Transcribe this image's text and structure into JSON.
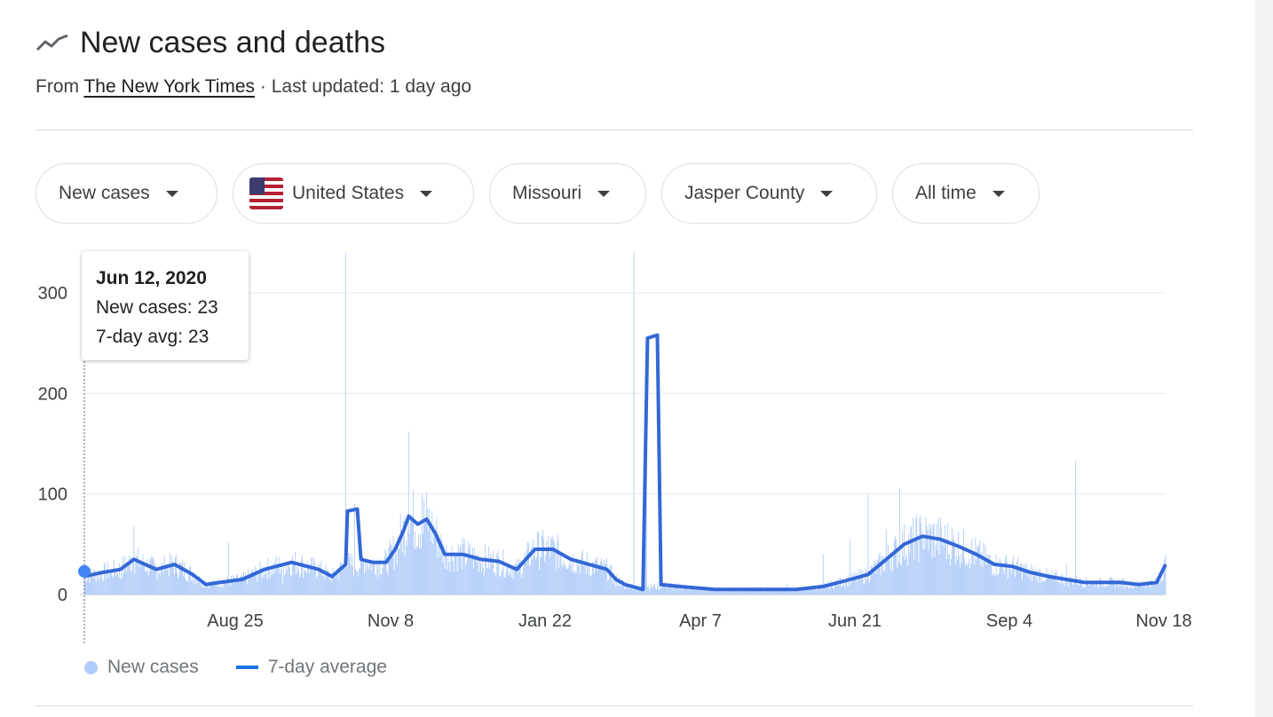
{
  "header": {
    "title": "New cases and deaths",
    "icon": "trend-line-icon"
  },
  "source": {
    "from_label": "From",
    "link": "The New York Times",
    "updated": "· Last updated: 1 day ago"
  },
  "filters": {
    "metric": "New cases",
    "country": "United States",
    "state": "Missouri",
    "county": "Jasper County",
    "range": "All time"
  },
  "tooltip": {
    "date": "Jun 12, 2020",
    "cases_line": "New cases: 23",
    "avg_line": "7-day avg: 23"
  },
  "legend": {
    "cases": "New cases",
    "avg": "7-day average"
  },
  "colors": {
    "bars": "#aecbfa",
    "line": "#3367d6",
    "grid": "#e8eaed",
    "axis_text": "#3c4043"
  },
  "chart_data": {
    "type": "bar",
    "ylim": [
      0,
      340
    ],
    "yticks": [
      0,
      100,
      200,
      300
    ],
    "xlabels": [
      "Aug 25",
      "Nov 8",
      "Jan 22",
      "Apr 7",
      "Jun 21",
      "Sep 4",
      "Nov 18"
    ],
    "series": [
      {
        "name": "New cases",
        "type": "bar",
        "approx_daily_points": [
          [
            0,
            23
          ],
          [
            30,
            25
          ],
          [
            40,
            15
          ],
          [
            55,
            68
          ],
          [
            90,
            28
          ],
          [
            130,
            12
          ],
          [
            160,
            52
          ],
          [
            200,
            20
          ],
          [
            220,
            10
          ],
          [
            260,
            30
          ],
          [
            290,
            340
          ],
          [
            300,
            90
          ],
          [
            320,
            30
          ],
          [
            345,
            40
          ],
          [
            360,
            162
          ],
          [
            375,
            100
          ],
          [
            390,
            65
          ],
          [
            430,
            40
          ],
          [
            470,
            30
          ],
          [
            500,
            45
          ],
          [
            530,
            30
          ],
          [
            560,
            20
          ],
          [
            590,
            8
          ],
          [
            600,
            5
          ],
          [
            610,
            340
          ],
          [
            625,
            8
          ],
          [
            660,
            5
          ],
          [
            700,
            5
          ],
          [
            750,
            8
          ],
          [
            780,
            10
          ],
          [
            820,
            40
          ],
          [
            850,
            55
          ],
          [
            870,
            100
          ],
          [
            890,
            65
          ],
          [
            905,
            105
          ],
          [
            930,
            60
          ],
          [
            960,
            40
          ],
          [
            990,
            35
          ],
          [
            1020,
            25
          ],
          [
            1050,
            15
          ],
          [
            1080,
            12
          ],
          [
            1090,
            30
          ],
          [
            1100,
            133
          ]
        ]
      },
      {
        "name": "7-day average",
        "type": "line",
        "approx_points": [
          [
            0,
            18
          ],
          [
            20,
            22
          ],
          [
            40,
            25
          ],
          [
            55,
            35
          ],
          [
            80,
            25
          ],
          [
            100,
            30
          ],
          [
            120,
            20
          ],
          [
            135,
            10
          ],
          [
            150,
            12
          ],
          [
            175,
            15
          ],
          [
            200,
            25
          ],
          [
            230,
            32
          ],
          [
            260,
            25
          ],
          [
            275,
            18
          ],
          [
            290,
            30
          ],
          [
            292,
            83
          ],
          [
            303,
            85
          ],
          [
            307,
            35
          ],
          [
            320,
            32
          ],
          [
            335,
            32
          ],
          [
            345,
            45
          ],
          [
            355,
            65
          ],
          [
            360,
            78
          ],
          [
            370,
            70
          ],
          [
            380,
            75
          ],
          [
            390,
            60
          ],
          [
            400,
            40
          ],
          [
            420,
            40
          ],
          [
            440,
            35
          ],
          [
            460,
            33
          ],
          [
            480,
            25
          ],
          [
            490,
            35
          ],
          [
            500,
            45
          ],
          [
            520,
            45
          ],
          [
            540,
            35
          ],
          [
            560,
            30
          ],
          [
            580,
            25
          ],
          [
            590,
            15
          ],
          [
            600,
            10
          ],
          [
            620,
            5
          ],
          [
            625,
            255
          ],
          [
            636,
            258
          ],
          [
            640,
            10
          ],
          [
            660,
            8
          ],
          [
            700,
            5
          ],
          [
            730,
            5
          ],
          [
            760,
            5
          ],
          [
            790,
            5
          ],
          [
            820,
            8
          ],
          [
            850,
            15
          ],
          [
            870,
            20
          ],
          [
            890,
            35
          ],
          [
            910,
            50
          ],
          [
            930,
            58
          ],
          [
            950,
            55
          ],
          [
            970,
            48
          ],
          [
            990,
            40
          ],
          [
            1010,
            30
          ],
          [
            1030,
            28
          ],
          [
            1050,
            22
          ],
          [
            1070,
            18
          ],
          [
            1090,
            15
          ],
          [
            1110,
            12
          ],
          [
            1130,
            12
          ],
          [
            1150,
            12
          ],
          [
            1170,
            10
          ],
          [
            1190,
            12
          ],
          [
            1200,
            30
          ]
        ]
      }
    ]
  }
}
